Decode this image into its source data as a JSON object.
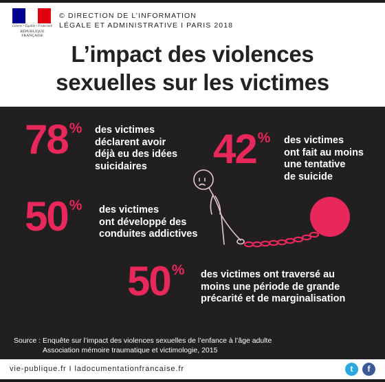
{
  "header": {
    "logo": {
      "flag_colors": [
        "#000091",
        "#ffffff",
        "#e1000f"
      ],
      "motto": "Liberté • Égalité • Fraternité",
      "name": "RÉPUBLIQUE FRANÇAISE"
    },
    "credit_line1": "© DIRECTION DE L’INFORMATION",
    "credit_line2": "LÉGALE ET ADMINISTRATIVE I PARIS 2018",
    "title_line1": "L’impact des violences",
    "title_line2": "sexuelles sur les victimes"
  },
  "accent_color": "#e8275a",
  "stats": [
    {
      "number": "78",
      "sign": "%",
      "lines": [
        "des victimes",
        "déclarent avoir",
        "déjà eu des idées",
        "suicidaires"
      ]
    },
    {
      "number": "42",
      "sign": "%",
      "lines": [
        "des victimes",
        "ont fait au moins",
        "une tentative",
        "de suicide"
      ]
    },
    {
      "number": "50",
      "sign": "%",
      "lines": [
        "des victimes",
        "ont développé des",
        "conduites addictives"
      ]
    },
    {
      "number": "50",
      "sign": "%",
      "lines": [
        "des victimes ont traversé au",
        "moins une période de grande",
        "précarité et de marginalisation"
      ]
    }
  ],
  "illustration": {
    "name": "figure-ball-and-chain-icon"
  },
  "source": {
    "line1": "Source : Enquête sur l’impact des violences sexuelles de l’enfance à l’âge adulte",
    "line2": "Association mémoire traumatique et victimologie, 2015"
  },
  "footer": {
    "text": "vie-publique.fr I ladocumentationfrancaise.fr",
    "social": [
      {
        "name": "twitter-icon",
        "glyph": "t"
      },
      {
        "name": "facebook-icon",
        "glyph": "f"
      }
    ]
  }
}
